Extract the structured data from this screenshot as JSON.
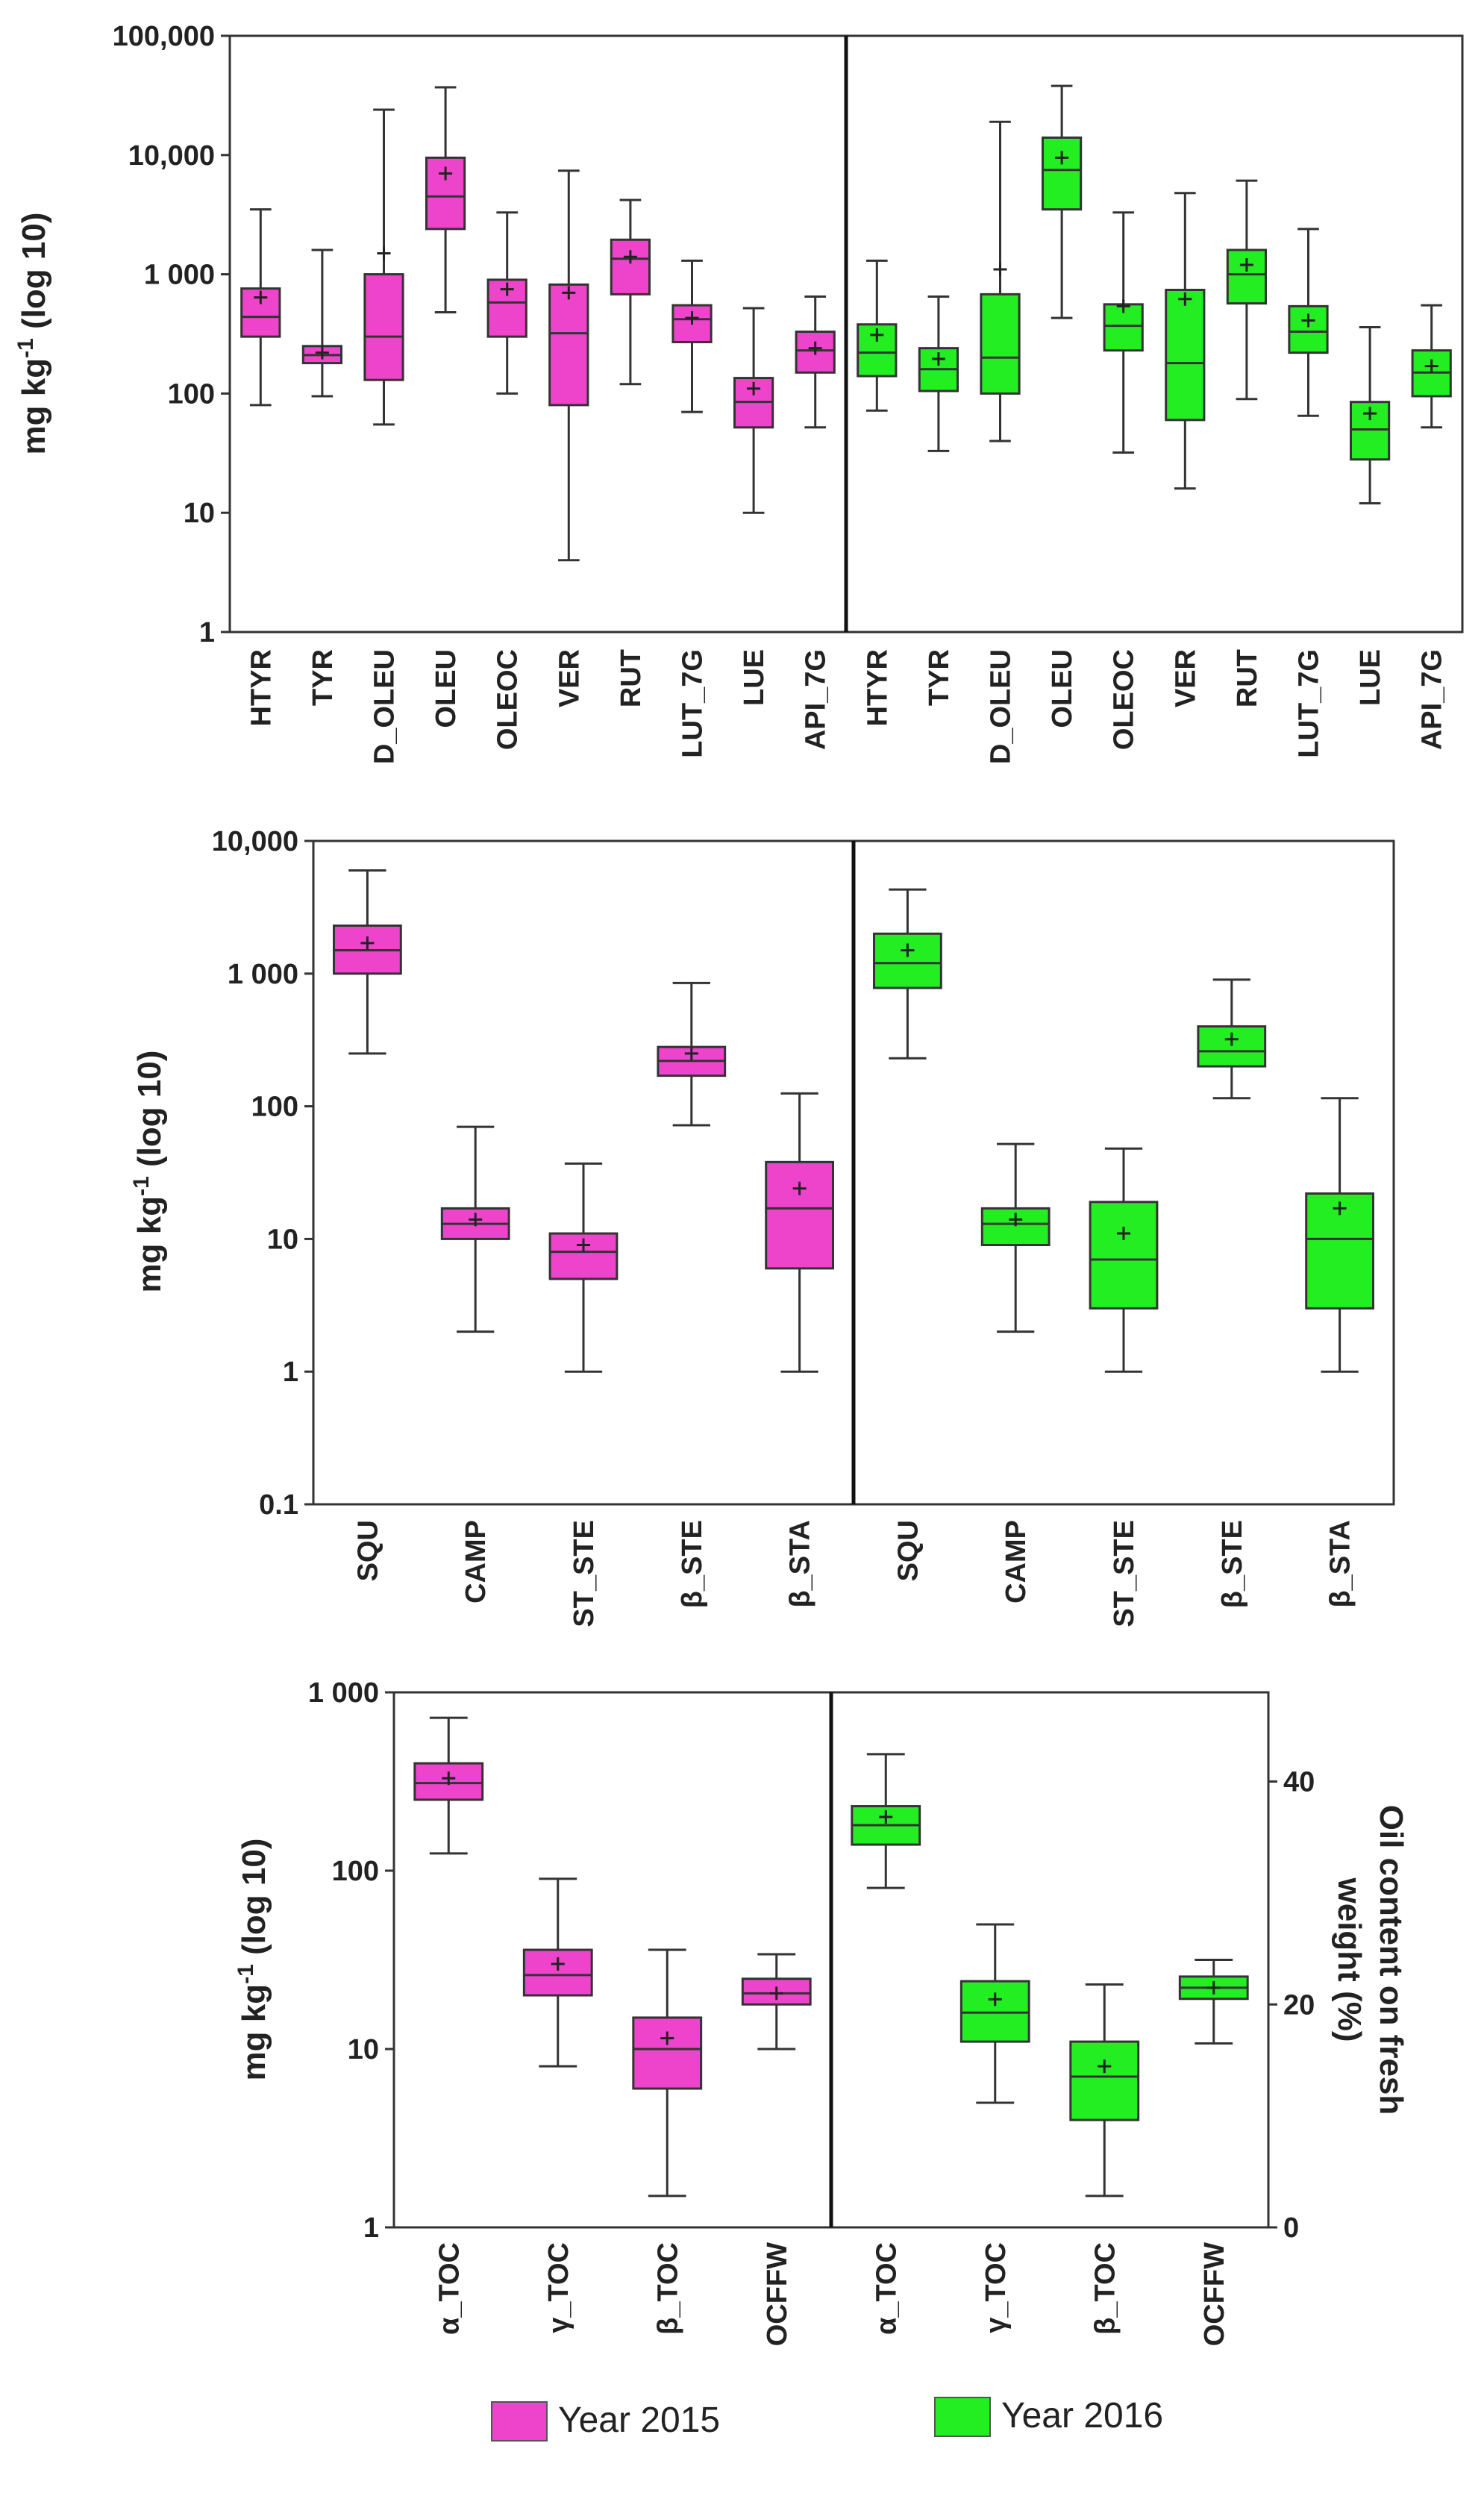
{
  "chart_data": [
    {
      "type": "box",
      "scale": "log10",
      "ylabel": "mg kg-1 (log 10)",
      "ylabel_main": "mg kg",
      "ylabel_sup": "-1",
      "ylabel_rest": " (log 10)",
      "ylim": [
        1,
        100000
      ],
      "y_ticks": [
        {
          "value": 100000,
          "label": "100,000"
        },
        {
          "value": 10000,
          "label": "10,000"
        },
        {
          "value": 1000,
          "label": "1 000"
        },
        {
          "value": 100,
          "label": "100"
        },
        {
          "value": 10,
          "label": "10"
        },
        {
          "value": 1,
          "label": "1"
        }
      ],
      "categories": [
        "HTYR",
        "TYR",
        "D_OLEU",
        "OLEU",
        "OLEOC",
        "VER",
        "RUT",
        "LUT_7G",
        "LUE",
        "API_7G"
      ],
      "series": [
        {
          "name": "Year 2015",
          "color": "#ee44cc",
          "boxes": [
            {
              "min": 80,
              "q1": 300,
              "median": 440,
              "q3": 760,
              "max": 3500,
              "mean": 640
            },
            {
              "min": 95,
              "q1": 180,
              "median": 210,
              "q3": 250,
              "max": 1600,
              "mean": 220
            },
            {
              "min": 55,
              "q1": 130,
              "median": 300,
              "q3": 1000,
              "max": 24000,
              "mean": 1500
            },
            {
              "min": 480,
              "q1": 2400,
              "median": 4500,
              "q3": 9500,
              "max": 37000,
              "mean": 7000
            },
            {
              "min": 100,
              "q1": 300,
              "median": 580,
              "q3": 900,
              "max": 3300,
              "mean": 750
            },
            {
              "min": 4,
              "q1": 80,
              "median": 320,
              "q3": 820,
              "max": 7400,
              "mean": 700
            },
            {
              "min": 120,
              "q1": 680,
              "median": 1350,
              "q3": 1950,
              "max": 4200,
              "mean": 1400
            },
            {
              "min": 70,
              "q1": 270,
              "median": 420,
              "q3": 550,
              "max": 1300,
              "mean": 430
            },
            {
              "min": 10,
              "q1": 52,
              "median": 85,
              "q3": 135,
              "max": 520,
              "mean": 110
            },
            {
              "min": 52,
              "q1": 150,
              "median": 230,
              "q3": 330,
              "max": 650,
              "mean": 240
            }
          ]
        },
        {
          "name": "Year 2016",
          "color": "#22ee22",
          "boxes": [
            {
              "min": 72,
              "q1": 140,
              "median": 220,
              "q3": 380,
              "max": 1300,
              "mean": 310
            },
            {
              "min": 33,
              "q1": 105,
              "median": 160,
              "q3": 240,
              "max": 650,
              "mean": 195
            },
            {
              "min": 40,
              "q1": 100,
              "median": 200,
              "q3": 680,
              "max": 19000,
              "mean": 1100
            },
            {
              "min": 430,
              "q1": 3500,
              "median": 7500,
              "q3": 14000,
              "max": 38000,
              "mean": 9500
            },
            {
              "min": 32,
              "q1": 230,
              "median": 370,
              "q3": 560,
              "max": 3300,
              "mean": 540
            },
            {
              "min": 16,
              "q1": 60,
              "median": 180,
              "q3": 740,
              "max": 4800,
              "mean": 620
            },
            {
              "min": 90,
              "q1": 570,
              "median": 1000,
              "q3": 1600,
              "max": 6100,
              "mean": 1200
            },
            {
              "min": 65,
              "q1": 220,
              "median": 330,
              "q3": 540,
              "max": 2400,
              "mean": 410
            },
            {
              "min": 12,
              "q1": 28,
              "median": 50,
              "q3": 85,
              "max": 360,
              "mean": 68
            },
            {
              "min": 52,
              "q1": 95,
              "median": 150,
              "q3": 230,
              "max": 550,
              "mean": 170
            }
          ]
        }
      ]
    },
    {
      "type": "box",
      "scale": "log10",
      "ylabel": "mg kg-1 (log 10)",
      "ylabel_main": "mg kg",
      "ylabel_sup": "-1",
      "ylabel_rest": " (log 10)",
      "ylim": [
        0.1,
        10000
      ],
      "y_ticks": [
        {
          "value": 10000,
          "label": "10,000"
        },
        {
          "value": 1000,
          "label": "1 000"
        },
        {
          "value": 100,
          "label": "100"
        },
        {
          "value": 10,
          "label": "10"
        },
        {
          "value": 1,
          "label": "1"
        },
        {
          "value": 0.1,
          "label": "0.1"
        }
      ],
      "categories": [
        "SQU",
        "CAMP",
        "ST_STE",
        "β_STE",
        "β_STA"
      ],
      "series": [
        {
          "name": "Year 2015",
          "color": "#ee44cc",
          "boxes": [
            {
              "min": 250,
              "q1": 1000,
              "median": 1500,
              "q3": 2300,
              "max": 6000,
              "mean": 1700
            },
            {
              "min": 2,
              "q1": 10,
              "median": 13,
              "q3": 17,
              "max": 70,
              "mean": 14
            },
            {
              "min": 1,
              "q1": 5,
              "median": 8,
              "q3": 11,
              "max": 37,
              "mean": 9
            },
            {
              "min": 72,
              "q1": 170,
              "median": 220,
              "q3": 280,
              "max": 850,
              "mean": 250
            },
            {
              "min": 1,
              "q1": 6,
              "median": 17,
              "q3": 38,
              "max": 125,
              "mean": 24
            }
          ]
        },
        {
          "name": "Year 2016",
          "color": "#22ee22",
          "boxes": [
            {
              "min": 230,
              "q1": 780,
              "median": 1200,
              "q3": 2000,
              "max": 4300,
              "mean": 1500
            },
            {
              "min": 2,
              "q1": 9,
              "median": 13,
              "q3": 17,
              "max": 52,
              "mean": 14
            },
            {
              "min": 1,
              "q1": 3,
              "median": 7,
              "q3": 19,
              "max": 48,
              "mean": 11
            },
            {
              "min": 115,
              "q1": 200,
              "median": 260,
              "q3": 400,
              "max": 900,
              "mean": 320
            },
            {
              "min": 1,
              "q1": 3,
              "median": 10,
              "q3": 22,
              "max": 115,
              "mean": 17
            }
          ]
        }
      ]
    },
    {
      "type": "box",
      "scale": "log10",
      "ylabel": "mg kg-1 (log 10)",
      "ylabel_main": "mg kg",
      "ylabel_sup": "-1",
      "ylabel_rest": " (log 10)",
      "ylim": [
        1,
        1000
      ],
      "y_ticks": [
        {
          "value": 1000,
          "label": "1 000"
        },
        {
          "value": 100,
          "label": "100"
        },
        {
          "value": 10,
          "label": "10"
        },
        {
          "value": 1,
          "label": "1"
        }
      ],
      "y2label": "Oil content on fresh weight (%)",
      "y2label_line1": "Oil content on fresh",
      "y2label_line2": "weight (%)",
      "y2lim": [
        0,
        48
      ],
      "y2_ticks": [
        {
          "value": 40,
          "label": "40"
        },
        {
          "value": 20,
          "label": "20"
        },
        {
          "value": 0,
          "label": "0"
        }
      ],
      "categories": [
        "α_TOC",
        "γ_TOC",
        "β_TOC",
        "OCFFW"
      ],
      "secondary_axis_categories": [
        "OCFFW"
      ],
      "series": [
        {
          "name": "Year 2015",
          "color": "#ee44cc",
          "boxes": [
            {
              "min": 125,
              "q1": 250,
              "median": 310,
              "q3": 400,
              "max": 720,
              "mean": 330
            },
            {
              "min": 8,
              "q1": 20,
              "median": 26,
              "q3": 36,
              "max": 90,
              "mean": 30
            },
            {
              "min": 1.5,
              "q1": 6,
              "median": 10,
              "q3": 15,
              "max": 36,
              "mean": 11.5
            },
            {
              "min": 16,
              "q1": 20,
              "median": 21,
              "q3": 22.3,
              "max": 24.5,
              "mean": 21
            }
          ]
        },
        {
          "name": "Year 2016",
          "color": "#22ee22",
          "boxes": [
            {
              "min": 80,
              "q1": 140,
              "median": 180,
              "q3": 230,
              "max": 450,
              "mean": 200
            },
            {
              "min": 5,
              "q1": 11,
              "median": 16,
              "q3": 24,
              "max": 50,
              "mean": 19
            },
            {
              "min": 1.5,
              "q1": 4,
              "median": 7,
              "q3": 11,
              "max": 23,
              "mean": 8
            },
            {
              "min": 16.5,
              "q1": 20.5,
              "median": 21.5,
              "q3": 22.5,
              "max": 24,
              "mean": 21.5
            }
          ]
        }
      ]
    }
  ],
  "legend": [
    {
      "label": "Year 2015",
      "color": "#ee44cc"
    },
    {
      "label": "Year 2016",
      "color": "#22ee22"
    }
  ]
}
